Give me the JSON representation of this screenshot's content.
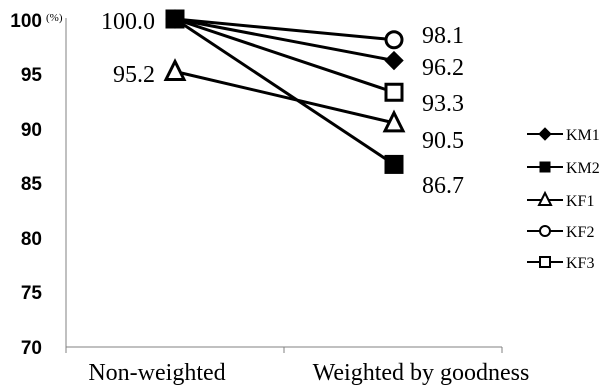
{
  "chart_data": {
    "type": "line",
    "categories": [
      "Non-weighted",
      "Weighted by goodness"
    ],
    "y_unit": "(%)",
    "ylim": [
      70,
      100
    ],
    "yticks": [
      "70",
      "75",
      "80",
      "85",
      "90",
      "95",
      "100"
    ],
    "grid": false,
    "legend_position": "right",
    "series": [
      {
        "name": "KM1",
        "marker": "diamond-filled",
        "values": [
          100.0,
          96.2
        ]
      },
      {
        "name": "KM2",
        "marker": "square-filled",
        "values": [
          100.0,
          86.7
        ]
      },
      {
        "name": "KF1",
        "marker": "triangle-open",
        "values": [
          95.2,
          90.5
        ]
      },
      {
        "name": "KF2",
        "marker": "circle-open",
        "values": [
          100.0,
          98.1
        ]
      },
      {
        "name": "KF3",
        "marker": "square-open",
        "values": [
          100.0,
          93.3
        ]
      }
    ],
    "data_labels": {
      "left": [
        "100.0",
        "95.2"
      ],
      "right": [
        "98.1",
        "96.2",
        "93.3",
        "90.5",
        "86.7"
      ]
    }
  }
}
